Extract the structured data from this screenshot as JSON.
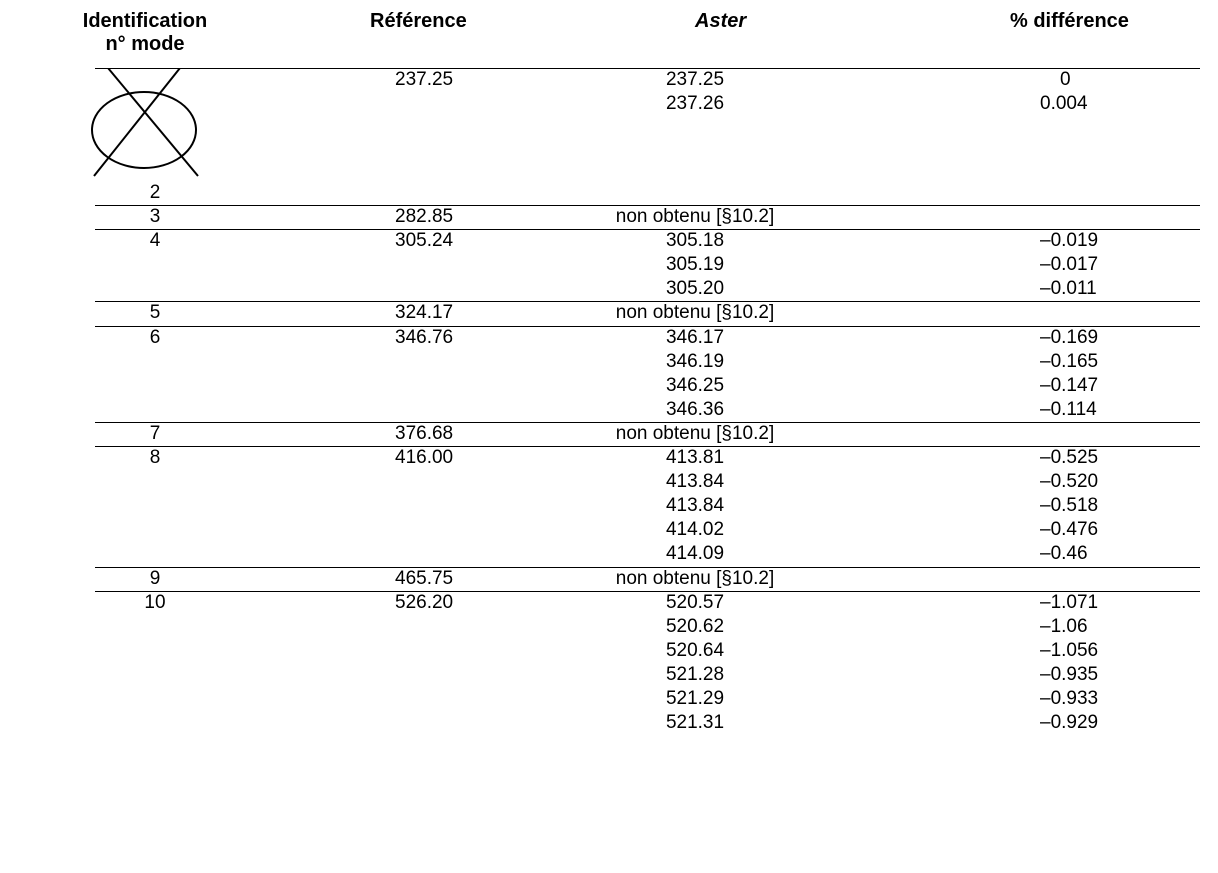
{
  "headers": {
    "identification": "Identification",
    "mode": "n° mode",
    "reference": "Référence",
    "aster": "Aster",
    "pct": "% différence"
  },
  "symbol_icon": "crossed-ellipse-icon",
  "rows": [
    {
      "mode": "2",
      "ref": "237.25",
      "aster": [
        "237.25",
        "237.26"
      ],
      "pct": [
        "0",
        "0.004"
      ]
    },
    {
      "mode": "3",
      "ref": "282.85",
      "aster": [
        "non obtenu [§10.2]"
      ],
      "pct": [
        ""
      ]
    },
    {
      "mode": "4",
      "ref": "305.24",
      "aster": [
        "305.18",
        "305.19",
        "305.20"
      ],
      "pct": [
        "–0.019",
        "–0.017",
        "–0.011"
      ]
    },
    {
      "mode": "5",
      "ref": "324.17",
      "aster": [
        "non obtenu [§10.2]"
      ],
      "pct": [
        ""
      ]
    },
    {
      "mode": "6",
      "ref": "346.76",
      "aster": [
        "346.17",
        "346.19",
        "346.25",
        "346.36"
      ],
      "pct": [
        "–0.169",
        "–0.165",
        "–0.147",
        "–0.114"
      ]
    },
    {
      "mode": "7",
      "ref": "376.68",
      "aster": [
        "non obtenu [§10.2]"
      ],
      "pct": [
        ""
      ]
    },
    {
      "mode": "8",
      "ref": "416.00",
      "aster": [
        "413.81",
        "413.84",
        "413.84",
        "414.02",
        "414.09"
      ],
      "pct": [
        "–0.525",
        "–0.520",
        "–0.518",
        "–0.476",
        "–0.46"
      ]
    },
    {
      "mode": "9",
      "ref": "465.75",
      "aster": [
        "non obtenu [§10.2]"
      ],
      "pct": [
        ""
      ]
    },
    {
      "mode": "10",
      "ref": "526.20",
      "aster": [
        "520.57",
        "520.62",
        "520.64",
        "521.28",
        "521.29",
        "521.31"
      ],
      "pct": [
        "–1.071",
        "–1.06",
        "–1.056",
        "–0.935",
        "–0.933",
        "–0.929"
      ]
    }
  ]
}
